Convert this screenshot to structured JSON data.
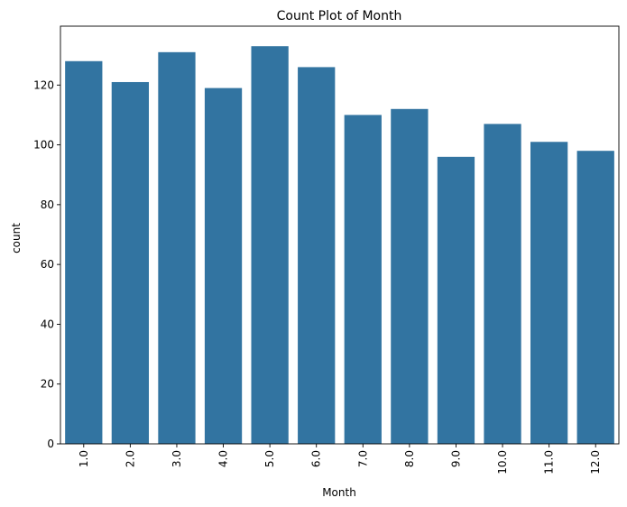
{
  "chart_data": {
    "type": "bar",
    "title": "Count Plot of Month",
    "xlabel": "Month",
    "ylabel": "count",
    "categories": [
      "1.0",
      "2.0",
      "3.0",
      "4.0",
      "5.0",
      "6.0",
      "7.0",
      "8.0",
      "9.0",
      "10.0",
      "11.0",
      "12.0"
    ],
    "values": [
      128,
      121,
      131,
      119,
      133,
      126,
      110,
      112,
      96,
      107,
      101,
      98
    ],
    "ylim": [
      0,
      139.7
    ],
    "yticks": [
      0,
      20,
      40,
      60,
      80,
      100,
      120
    ],
    "ytick_labels": [
      "0",
      "20",
      "40",
      "60",
      "80",
      "100",
      "120"
    ],
    "bar_color": "#3274a1",
    "grid": false,
    "legend": "none"
  }
}
